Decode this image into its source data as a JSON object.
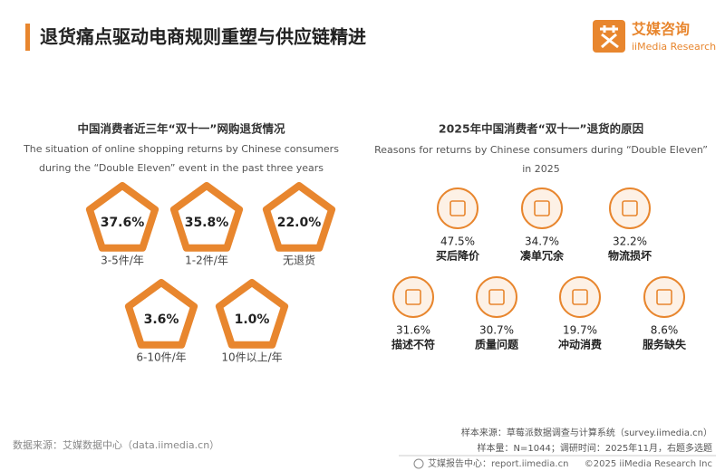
{
  "header": {
    "title": "退货痛点驱动电商规则重塑与供应链精进",
    "logo_name": "艾媒咨询",
    "logo_sub": "iiMedia Research"
  },
  "chart_data": [
    {
      "type": "pentagon",
      "title": "中国消费者近三年“双十一”网购退货情况",
      "subtitle": [
        "The situation of online shopping returns by Chinese consumers",
        "during the “Double Eleven” event in the past three years"
      ],
      "categories": [
        "3-5件/年",
        "1-2件/年",
        "无退货",
        "6-10件/年",
        "10件以上/年"
      ],
      "values": [
        37.6,
        35.8,
        22.0,
        3.6,
        1.0
      ],
      "value_labels": [
        "37.6%",
        "35.8%",
        "22.0%",
        "3.6%",
        "1.0%"
      ],
      "color": "#e8862e"
    },
    {
      "type": "icon",
      "title": "2025年中国消费者“双十一”退货的原因",
      "subtitle": [
        "Reasons for returns by Chinese consumers during “Double Eleven”",
        "in 2025"
      ],
      "categories": [
        "买后降价",
        "凑单冗余",
        "物流损坏",
        "描述不符",
        "质量问题",
        "冲动消费",
        "服务缺失"
      ],
      "values": [
        47.5,
        34.7,
        32.2,
        31.6,
        30.7,
        19.7,
        8.6
      ],
      "value_labels": [
        "47.5%",
        "34.7%",
        "32.2%",
        "31.6%",
        "30.7%",
        "19.7%",
        "8.6%"
      ],
      "color": "#e8862e"
    }
  ],
  "footer": {
    "source": "数据来源：艾媒数据中心（data.iimedia.cn）",
    "sample_source": "样本来源：草莓派数据调查与计算系统（survey.iimedia.cn）",
    "sample_size": "样本量：N=1044；调研时间：2025年11月，右题多选题",
    "report": "艾媒报告中心：report.iimedia.cn",
    "copyright": "©2025 iiMedia Research Inc"
  }
}
